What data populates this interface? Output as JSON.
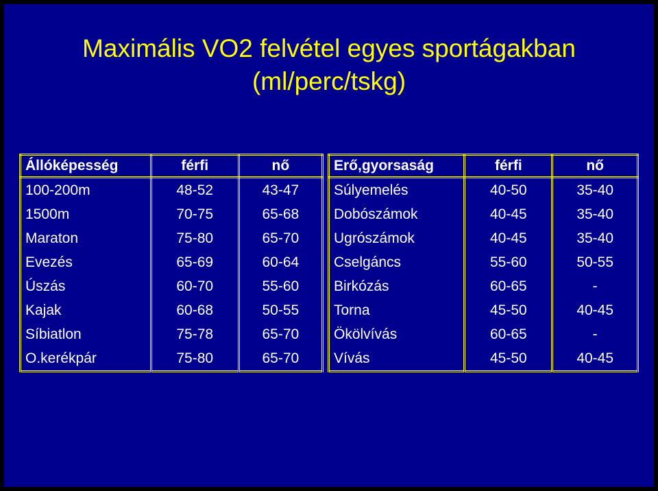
{
  "title": [
    "Maximális VO2 felvétel egyes sportágakban",
    "(ml/perc/tskg)"
  ],
  "tables": [
    {
      "header": [
        "Állóképesség",
        "férfi",
        "nő"
      ],
      "rows": [
        [
          "100-200m",
          "48-52",
          "43-47"
        ],
        [
          "1500m",
          "70-75",
          "65-68"
        ],
        [
          "Maraton",
          "75-80",
          "65-70"
        ],
        [
          "Evezés",
          "65-69",
          "60-64"
        ],
        [
          "Úszás",
          "60-70",
          "55-60"
        ],
        [
          "Kajak",
          "60-68",
          "50-55"
        ],
        [
          "Síbiatlon",
          "75-78",
          "65-70"
        ],
        [
          "O.kerékpár",
          "75-80",
          "65-70"
        ]
      ]
    },
    {
      "header": [
        "Erő,gyorsaság",
        "férfi",
        "nő"
      ],
      "rows": [
        [
          "Súlyemelés",
          "40-50",
          "35-40"
        ],
        [
          "Dobószámok",
          "40-45",
          "35-40"
        ],
        [
          "Ugrószámok",
          "40-45",
          "35-40"
        ],
        [
          "Cselgáncs",
          "55-60",
          "50-55"
        ],
        [
          "Birkózás",
          "60-65",
          "-"
        ],
        [
          "Torna",
          "45-50",
          "40-45"
        ],
        [
          "Ökölvívás",
          "60-65",
          "-"
        ],
        [
          "Vívás",
          "45-50",
          "40-45"
        ]
      ]
    }
  ]
}
